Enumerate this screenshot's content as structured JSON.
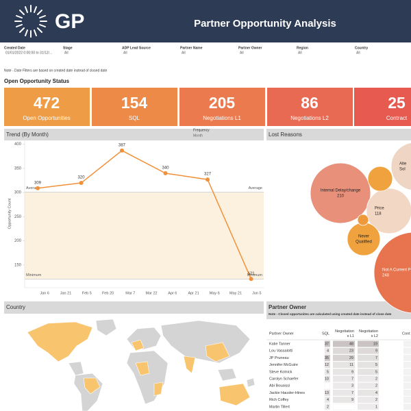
{
  "header": {
    "logo": "GP",
    "title": "Partner Opportunity Analysis"
  },
  "filters": [
    {
      "label": "Created Date",
      "value": "01/01/2022 0:00:00 to 31/12/..."
    },
    {
      "label": "Stage",
      "value": "All"
    },
    {
      "label": "ADP Lead Source",
      "value": "All"
    },
    {
      "label": "Partner Name",
      "value": "All"
    },
    {
      "label": "Partner Owner",
      "value": "All"
    },
    {
      "label": "Region",
      "value": "All"
    },
    {
      "label": "Country",
      "value": "All"
    }
  ],
  "note": "Note - Date Filters are based on created date instead of closed date",
  "status": {
    "title": "Open Opportunity Status",
    "kpis": [
      {
        "value": 472,
        "label": "Open Opportunities",
        "color": "#ee9c45"
      },
      {
        "value": 154,
        "label": "SQL",
        "color": "#ed8a47"
      },
      {
        "value": 205,
        "label": "Negotiations L1",
        "color": "#eb7a4e"
      },
      {
        "value": 86,
        "label": "Negotiations L2",
        "color": "#e96a52"
      },
      {
        "value": 25,
        "label": "Contract",
        "color": "#e65a50"
      }
    ]
  },
  "trend": {
    "type": "line",
    "title": "Trend (By Month)",
    "frequency_label": "Frequency",
    "frequency": "Month",
    "y_label": "Opportunity Count",
    "x": [
      "Jan 1",
      "Feb 1",
      "Mar 1",
      "Apr 1",
      "May 1",
      "Jun 1"
    ],
    "values": [
      309,
      320,
      387,
      340,
      327,
      121
    ],
    "color": "#f0913a",
    "ylim": [
      103,
      408
    ],
    "yticks": [
      150,
      200,
      250,
      300,
      350,
      400
    ],
    "xticks": [
      "Jan 6",
      "Jan 21",
      "Feb 5",
      "Feb 20",
      "Mar 7",
      "Mar 22",
      "Apr 6",
      "Apr 21",
      "May 6",
      "May 21",
      "Jun 5"
    ],
    "reference_lines": [
      {
        "label": "Average",
        "value": 300.67
      },
      {
        "label": "Minimum",
        "value": 121
      }
    ],
    "band_color": "#fcf1df"
  },
  "lost_reasons": {
    "title": "Lost Reasons",
    "bubbles": [
      {
        "name": [
          "Internal Delay/change"
        ],
        "value": 210,
        "labeled": true,
        "color": "#e8907a"
      },
      {
        "name": [
          "Price"
        ],
        "value": 118,
        "labeled": true,
        "color": "#f3d7c5"
      },
      {
        "name": [
          "Never",
          "Qualified"
        ],
        "value": 62,
        "labeled": false,
        "color": "#f0a23e"
      },
      {
        "name": [
          "Not A Current P"
        ],
        "value": 248,
        "labeled": true,
        "color": "#e8744f"
      },
      {
        "name": [
          "Alte",
          "Sol"
        ],
        "value": 130,
        "labeled": false,
        "color": "#efd6c4"
      },
      {
        "name": [],
        "value": 35,
        "labeled": false,
        "color": "#f0a23e"
      },
      {
        "name": [],
        "value": 7,
        "labeled": false,
        "color": "#ee9a3c"
      }
    ]
  },
  "country": {
    "title": "Country"
  },
  "partner_owner": {
    "title": "Partner Owner",
    "note": "Note - Closed opportunites are calculated using created date instead of close date",
    "columns": [
      [
        "Partner Owner"
      ],
      [
        "SQL"
      ],
      [
        "Negotiation",
        "s L1"
      ],
      [
        "Negotiation",
        "s L2"
      ],
      [
        "Cont"
      ]
    ],
    "rows": [
      [
        "Katie Tanner",
        37,
        48,
        19
      ],
      [
        "Lou Vassalotti",
        4,
        23,
        9
      ],
      [
        "JP Pruneau",
        35,
        29,
        7
      ],
      [
        "Jennifer McGuire",
        12,
        11,
        5
      ],
      [
        "Steve Kolnick",
        5,
        9,
        5
      ],
      [
        "Carolyn Schaefer",
        10,
        7,
        2
      ],
      [
        "Abi Bouaissi",
        null,
        3,
        2
      ],
      [
        "Jackie Hausler-Hines",
        13,
        7,
        4
      ],
      [
        "Rich Coffey",
        4,
        9,
        2
      ],
      [
        "Martin Tillert",
        2,
        null,
        1
      ]
    ]
  }
}
